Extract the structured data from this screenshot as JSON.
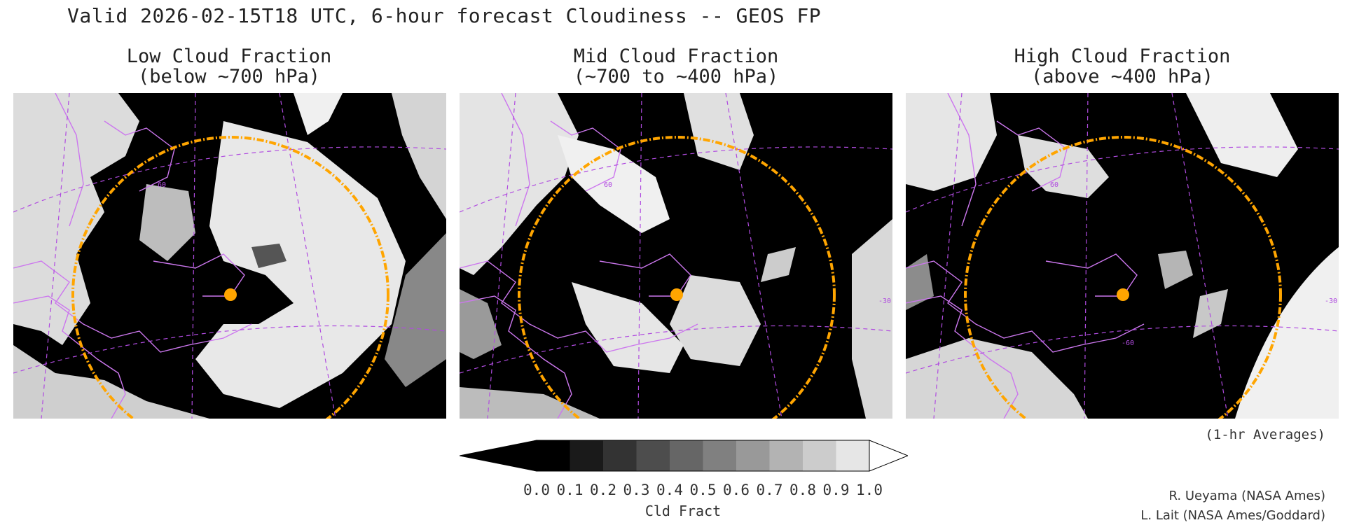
{
  "header": {
    "title": "Valid 2026-02-15T18 UTC, 6-hour forecast Cloudiness -- GEOS FP"
  },
  "panels": [
    {
      "title_line1": "Low Cloud Fraction",
      "title_line2": "(below ~700 hPa)"
    },
    {
      "title_line1": "Mid Cloud Fraction",
      "title_line2": "(~700 to ~400 hPa)"
    },
    {
      "title_line1": "High Cloud Fraction",
      "title_line2": "(above ~400 hPa)"
    }
  ],
  "map_labels": {
    "lat": "60",
    "lon_left": "-60",
    "lon_right": "-30"
  },
  "averaging_note": "(1-hr Averages)",
  "colorbar": {
    "label": "Cld Fract",
    "ticks": [
      "0.0",
      "0.1",
      "0.2",
      "0.3",
      "0.4",
      "0.5",
      "0.6",
      "0.7",
      "0.8",
      "0.9",
      "1.0"
    ],
    "colors": [
      "#000000",
      "#1a1a1a",
      "#333333",
      "#4d4d4d",
      "#666666",
      "#808080",
      "#999999",
      "#b3b3b3",
      "#cccccc",
      "#e6e6e6"
    ],
    "over_color": "#ffffff",
    "under_color": "#000000"
  },
  "credits": {
    "line1": "R. Ueyama (NASA Ames)",
    "line2": "L. Lait (NASA Ames/Goddard)"
  },
  "colors": {
    "coastline": "#cc77ee",
    "range_circle": "#ffa500",
    "point_marker": "#ffa500"
  }
}
